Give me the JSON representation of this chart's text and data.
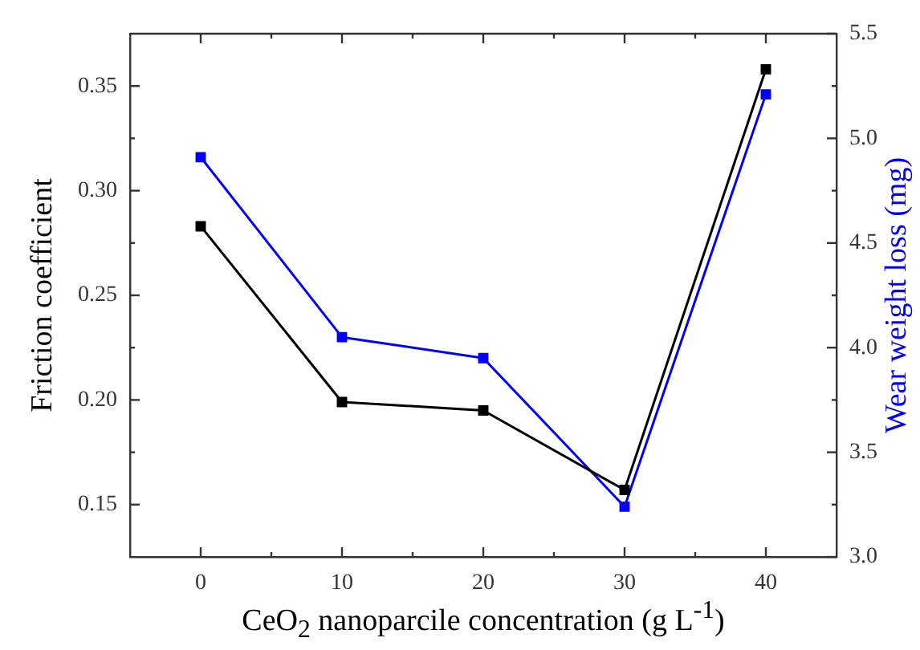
{
  "chart_data": {
    "type": "line",
    "xlabel": "CeO$_{2}$ nanoparcile concentration (g L$^{-1}$)",
    "ylabel": "Friction coefficient",
    "y2label": "Wear weight loss (mg)",
    "x": [
      0,
      10,
      20,
      30,
      40
    ],
    "series": [
      {
        "color": "#000000",
        "values": [
          0.283,
          0.199,
          0.195,
          0.157,
          0.358
        ]
      },
      {
        "color": "#0000ff",
        "axis": "y2",
        "values": [
          4.91,
          4.05,
          3.95,
          3.24,
          5.21
        ]
      }
    ],
    "xlim": [
      -5,
      45
    ],
    "xticks": [
      0,
      {
        "value": 5,
        "label": null
      },
      10,
      {
        "value": 15,
        "label": null
      },
      20,
      {
        "value": 25,
        "label": null
      },
      30,
      {
        "value": 35,
        "label": null
      },
      40
    ],
    "ylim": [
      0.125,
      0.375
    ],
    "yticks": [
      0.15,
      {
        "value": 0.175,
        "label": null
      },
      {
        "value": 0.2,
        "label": "0.20"
      },
      {
        "value": 0.225,
        "label": null
      },
      0.25,
      {
        "value": 0.275,
        "label": null
      },
      {
        "value": 0.3,
        "label": "0.30"
      },
      {
        "value": 0.325,
        "label": null
      },
      0.35
    ],
    "y2lim": [
      3.0,
      5.5
    ],
    "y2ticks": [
      {
        "value": 3,
        "label": "3.0"
      },
      {
        "value": 3.25,
        "label": null
      },
      3.5,
      {
        "value": 3.75,
        "label": null
      },
      {
        "value": 4,
        "label": "4.0"
      },
      {
        "value": 4.25,
        "label": null
      },
      4.5,
      {
        "value": 4.75,
        "label": null
      },
      {
        "value": 5,
        "label": "5.0"
      },
      {
        "value": 5.25,
        "label": null
      },
      5.5
    ],
    "marker": "square",
    "line_style": "solid",
    "grid": false,
    "legend": false
  }
}
